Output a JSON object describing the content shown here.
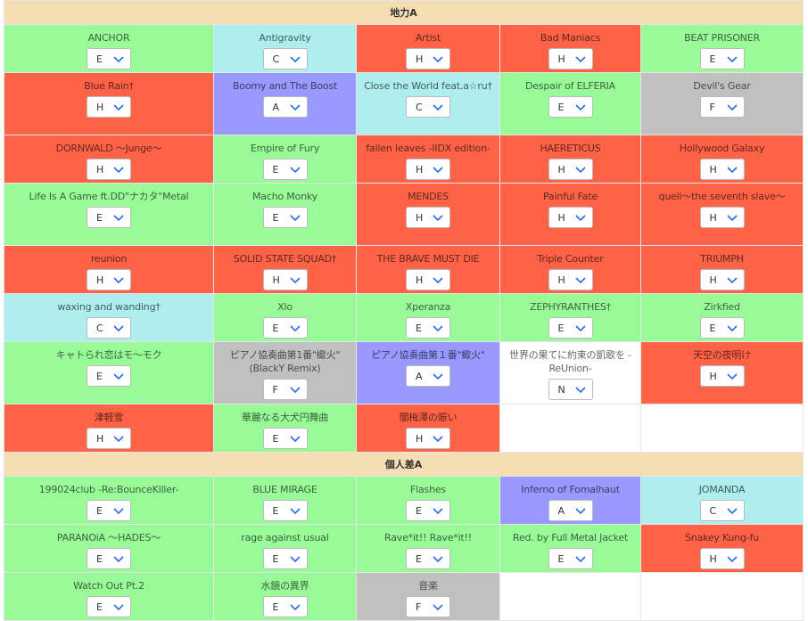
{
  "grade_colors": {
    "E": "#98fb98",
    "C": "#afeeee",
    "H": "#ff6347",
    "A": "#9999ff",
    "F": "#c0c0c0",
    "N": "#ffffff"
  },
  "sections": [
    {
      "title": "地力A",
      "rows": [
        [
          {
            "name": "ANCHOR",
            "grade": "E"
          },
          {
            "name": "Antigravity",
            "grade": "C"
          },
          {
            "name": "Artist",
            "grade": "H"
          },
          {
            "name": "Bad Maniacs",
            "grade": "H"
          },
          {
            "name": "BEAT PRISONER",
            "grade": "E"
          }
        ],
        [
          {
            "name": "Blue Rain†",
            "grade": "H"
          },
          {
            "name": "Boomy and The Boost",
            "grade": "A"
          },
          {
            "name": "Close the World feat.a☆ru†",
            "grade": "C"
          },
          {
            "name": "Despair of ELFERIA",
            "grade": "E"
          },
          {
            "name": "Devil's Gear",
            "grade": "F"
          }
        ],
        [
          {
            "name": "DORNWALD ～Junge～",
            "grade": "H"
          },
          {
            "name": "Empire of Fury",
            "grade": "E"
          },
          {
            "name": "fallen leaves -IIDX edition-",
            "grade": "H"
          },
          {
            "name": "HAERETICUS",
            "grade": "H"
          },
          {
            "name": "Hollywood Galaxy",
            "grade": "H"
          }
        ],
        [
          {
            "name": "Life Is A Game ft.DD\"ナカタ\"Metal",
            "grade": "E"
          },
          {
            "name": "Macho Monky",
            "grade": "E"
          },
          {
            "name": "MENDES",
            "grade": "H"
          },
          {
            "name": "Painful Fate",
            "grade": "H"
          },
          {
            "name": "queli～the seventh slave～",
            "grade": "H"
          }
        ],
        [
          {
            "name": "reunion",
            "grade": "H"
          },
          {
            "name": "SOLID STATE SQUAD†",
            "grade": "H"
          },
          {
            "name": "THE BRAVE MUST DIE",
            "grade": "H"
          },
          {
            "name": "Triple Counter",
            "grade": "H"
          },
          {
            "name": "TRIUMPH",
            "grade": "H"
          }
        ],
        [
          {
            "name": "waxing and wanding†",
            "grade": "C"
          },
          {
            "name": "Xlo",
            "grade": "E"
          },
          {
            "name": "Xperanza",
            "grade": "E"
          },
          {
            "name": "ZEPHYRANTHES†",
            "grade": "E"
          },
          {
            "name": "Zirkfied",
            "grade": "E"
          }
        ],
        [
          {
            "name": "キャトられ恋はモ～モク",
            "grade": "E"
          },
          {
            "name": "ピアノ協奏曲第1番\"蠍火\" (BlackY Remix)",
            "grade": "F"
          },
          {
            "name": "ピアノ協奏曲第１番\"蠍火\"",
            "grade": "A"
          },
          {
            "name": "世界の果てに約束の凱歌を -ReUnion-",
            "grade": "N"
          },
          {
            "name": "天空の夜明け",
            "grade": "H"
          }
        ],
        [
          {
            "name": "津軽雪",
            "grade": "H"
          },
          {
            "name": "華麗なる大犬円舞曲",
            "grade": "E"
          },
          {
            "name": "闇梅澤の賑い",
            "grade": "H"
          }
        ]
      ]
    },
    {
      "title": "個人差A",
      "rows": [
        [
          {
            "name": "199024club -Re:BounceKiller-",
            "grade": "E"
          },
          {
            "name": "BLUE MIRAGE",
            "grade": "E"
          },
          {
            "name": "Flashes",
            "grade": "E"
          },
          {
            "name": "Inferno of Fomalhaut",
            "grade": "A"
          },
          {
            "name": "JOMANDA",
            "grade": "C"
          }
        ],
        [
          {
            "name": "PARANOiA ～HADES～",
            "grade": "E"
          },
          {
            "name": "rage against usual",
            "grade": "E"
          },
          {
            "name": "Rave*it!! Rave*it!!",
            "grade": "E"
          },
          {
            "name": "Red. by Full Metal Jacket",
            "grade": "E"
          },
          {
            "name": "Snakey Kung-fu",
            "grade": "H"
          }
        ],
        [
          {
            "name": "Watch Out Pt.2",
            "grade": "E"
          },
          {
            "name": "水鏡の異界",
            "grade": "E"
          },
          {
            "name": "音楽",
            "grade": "F"
          }
        ]
      ]
    }
  ]
}
